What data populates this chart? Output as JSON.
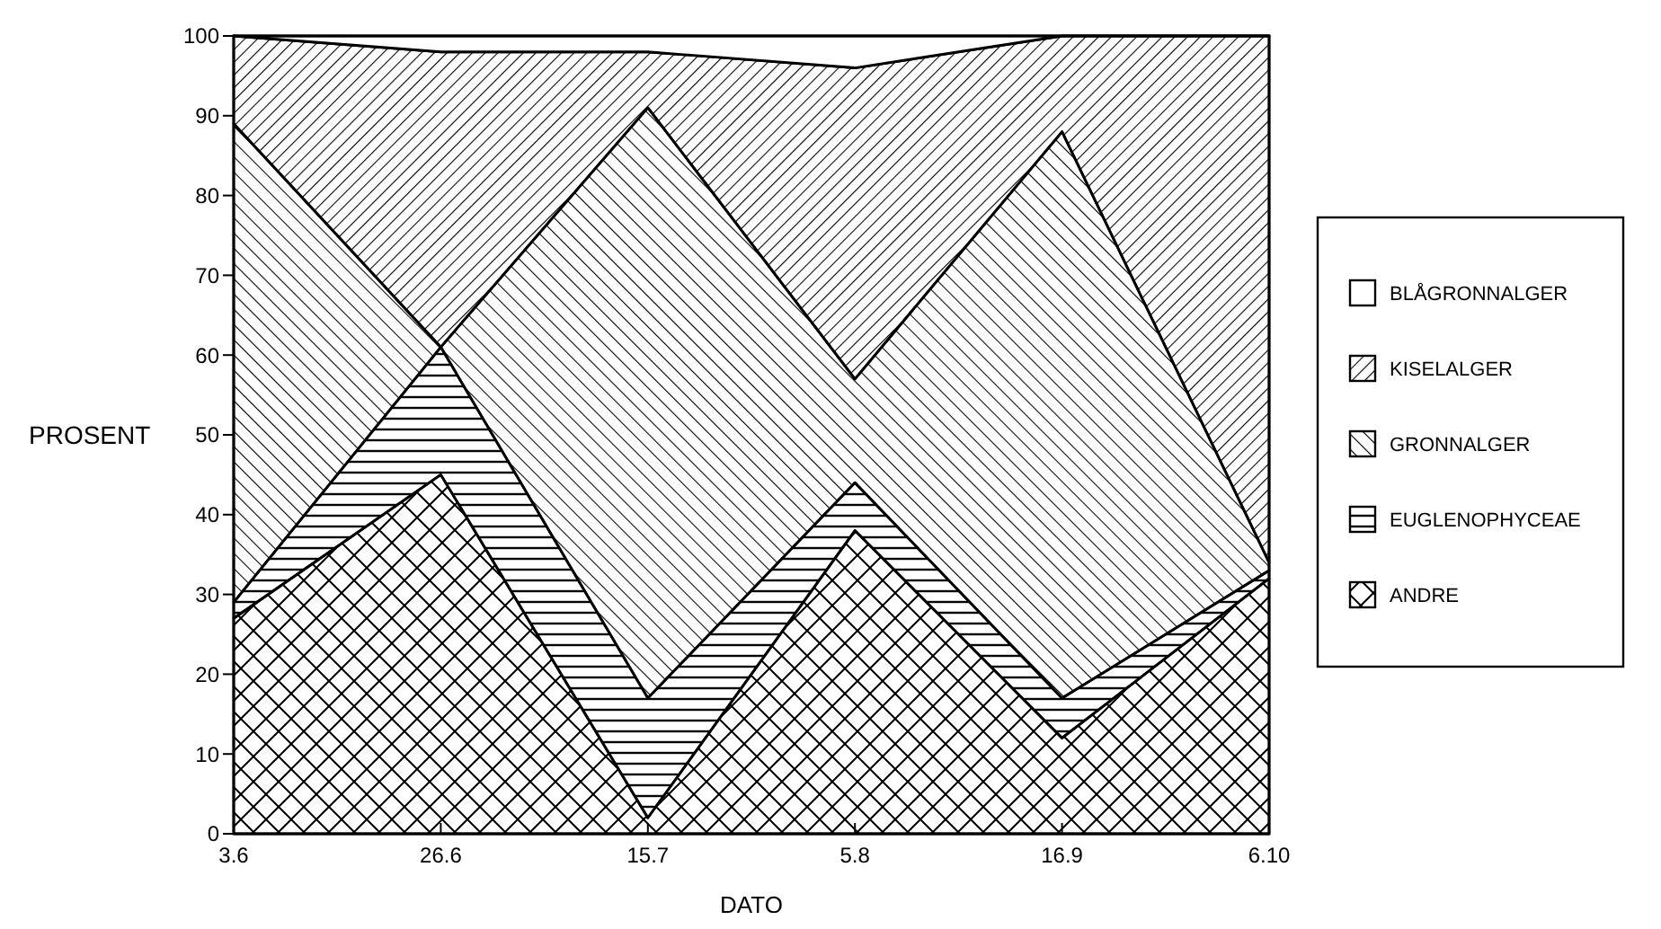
{
  "chart_data": {
    "type": "area",
    "stacked": true,
    "xlabel": "DATO",
    "ylabel": "PROSENT",
    "categories": [
      "3.6",
      "26.6",
      "15.7",
      "5.8",
      "16.9",
      "6.10"
    ],
    "series": [
      {
        "name": "ANDRE",
        "color": "#000000",
        "values": [
          27,
          45,
          2,
          38,
          12,
          32
        ]
      },
      {
        "name": "EUGLENOPHYCEAE",
        "color": "#000000",
        "values": [
          2,
          16,
          15,
          6,
          5,
          1
        ]
      },
      {
        "name": "GRONNALGER",
        "color": "#000000",
        "values": [
          60,
          0,
          74,
          13,
          71,
          1
        ]
      },
      {
        "name": "KISELALGER",
        "color": "#000000",
        "values": [
          11,
          37,
          7,
          39,
          12,
          66
        ]
      },
      {
        "name": "BLÅGRONNALGER",
        "color": "#000000",
        "values": [
          0,
          2,
          2,
          4,
          0,
          0
        ]
      }
    ],
    "ylim": [
      0,
      100
    ],
    "yticks": [
      0,
      10,
      20,
      30,
      40,
      50,
      60,
      70,
      80,
      90,
      100
    ],
    "grid": false,
    "legend": "right"
  }
}
